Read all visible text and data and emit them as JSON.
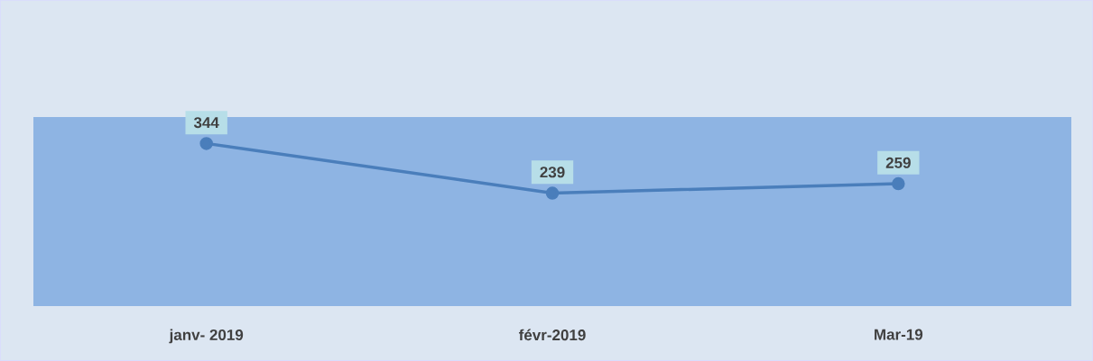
{
  "chart_data": {
    "type": "line",
    "categories": [
      "janv- 2019",
      "févr-2019",
      "Mar-19"
    ],
    "values": [
      344,
      239,
      259
    ],
    "color": "#4a7ebb",
    "ylim": [
      0,
      400
    ],
    "marker": "circle",
    "data_labels": true,
    "tick_labels": "x"
  }
}
